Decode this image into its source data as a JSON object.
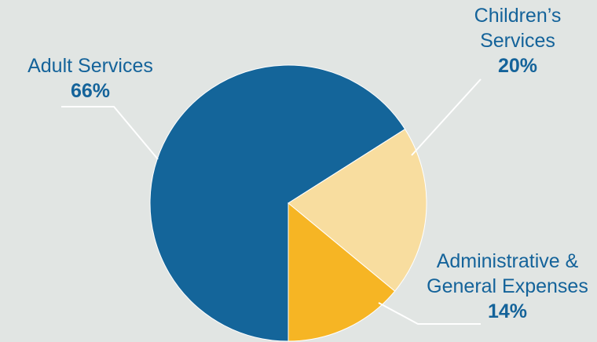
{
  "colors": {
    "background": "#e1e5e3",
    "label_text": "#14639a",
    "leader_line": "#ffffff"
  },
  "chart_data": {
    "type": "pie",
    "title": "",
    "slices": [
      {
        "label_lines": [
          "Adult Services"
        ],
        "value": 66,
        "value_label": "66%",
        "color": "#14659a"
      },
      {
        "label_lines": [
          "Children’s",
          "Services"
        ],
        "value": 20,
        "value_label": "20%",
        "color": "#f8dd9f"
      },
      {
        "label_lines": [
          "Administrative &",
          "General Expenses"
        ],
        "value": 14,
        "value_label": "14%",
        "color": "#f6b524"
      }
    ]
  }
}
